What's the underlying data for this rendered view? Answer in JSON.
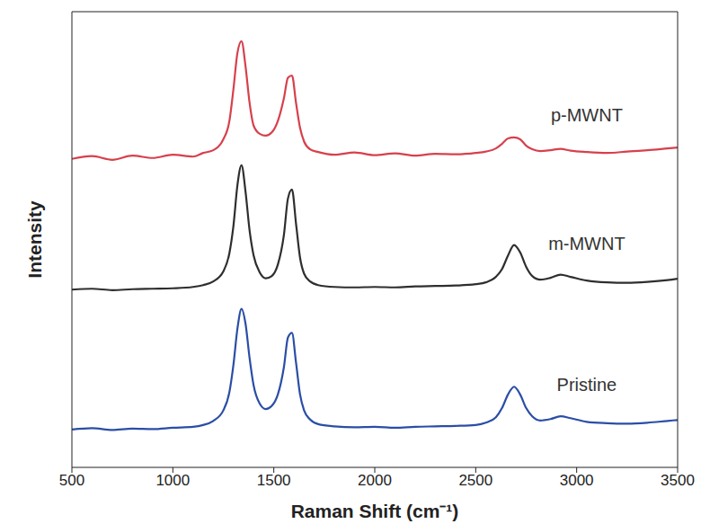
{
  "chart_data": {
    "type": "line",
    "xlabel": "Raman Shift (cm⁻¹)",
    "ylabel": "Intensity",
    "x": [
      500,
      600,
      700,
      800,
      900,
      1000,
      1100,
      1150,
      1200,
      1250,
      1280,
      1300,
      1320,
      1340,
      1360,
      1380,
      1400,
      1430,
      1460,
      1490,
      1520,
      1550,
      1570,
      1590,
      1610,
      1630,
      1650,
      1680,
      1720,
      1800,
      1900,
      2000,
      2100,
      2200,
      2300,
      2400,
      2500,
      2550,
      2600,
      2630,
      2660,
      2690,
      2720,
      2750,
      2780,
      2820,
      2870,
      2920,
      2970,
      3050,
      3150,
      3250,
      3350,
      3450,
      3500
    ],
    "series": [
      {
        "name": "p-MWNT",
        "color": "#d7404c",
        "values": [
          67.7,
          68.3,
          67.5,
          68.4,
          67.9,
          68.6,
          68.2,
          69.0,
          69.6,
          72.0,
          76.0,
          83.0,
          91.0,
          93.5,
          88.0,
          80.0,
          75.0,
          73.2,
          72.8,
          73.5,
          76.0,
          81.0,
          85.5,
          86.0,
          80.0,
          74.5,
          71.5,
          69.8,
          69.2,
          68.6,
          69.1,
          68.5,
          68.9,
          68.4,
          68.8,
          68.7,
          69.0,
          69.3,
          70.0,
          71.0,
          72.2,
          72.4,
          72.0,
          70.6,
          69.8,
          69.4,
          69.6,
          69.9,
          69.5,
          69.2,
          69.0,
          69.3,
          69.6,
          70.0,
          70.2
        ]
      },
      {
        "name": "m-MWNT",
        "color": "#2e2e2e",
        "values": [
          39.0,
          39.2,
          38.9,
          39.1,
          39.2,
          39.3,
          39.6,
          40.0,
          40.8,
          43.0,
          47.0,
          53.0,
          62.0,
          66.3,
          60.5,
          52.0,
          46.5,
          42.8,
          41.5,
          42.0,
          44.5,
          51.0,
          59.0,
          61.0,
          53.5,
          46.0,
          42.5,
          40.8,
          40.0,
          39.6,
          39.5,
          39.6,
          39.5,
          39.7,
          39.8,
          39.9,
          40.2,
          40.6,
          41.8,
          43.5,
          46.5,
          48.8,
          47.2,
          44.0,
          42.0,
          41.2,
          41.6,
          42.3,
          41.8,
          41.0,
          40.6,
          40.5,
          40.7,
          41.1,
          41.4
        ]
      },
      {
        "name": "Pristine",
        "color": "#2a4ea6",
        "values": [
          8.3,
          8.6,
          8.2,
          8.5,
          8.4,
          8.7,
          8.9,
          9.3,
          10.2,
          12.5,
          16.5,
          22.5,
          30.5,
          34.8,
          31.5,
          24.0,
          18.0,
          14.0,
          12.8,
          13.5,
          16.0,
          22.0,
          28.5,
          29.5,
          23.0,
          16.0,
          12.5,
          10.5,
          9.5,
          9.0,
          8.8,
          8.9,
          8.7,
          8.9,
          9.0,
          9.1,
          9.3,
          9.8,
          11.0,
          13.0,
          16.0,
          17.7,
          16.0,
          13.0,
          11.2,
          10.3,
          10.6,
          11.2,
          10.8,
          10.0,
          9.7,
          9.6,
          9.8,
          10.2,
          10.4
        ]
      }
    ],
    "xlim": [
      500,
      3500
    ],
    "xticks": [
      500,
      1000,
      1500,
      2000,
      2500,
      3000,
      3500
    ],
    "ylim": [
      0,
      100
    ],
    "tick_labels": "x",
    "grid": false
  }
}
